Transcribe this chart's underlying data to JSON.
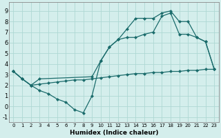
{
  "xlabel": "Humidex (Indice chaleur)",
  "xlim": [
    -0.5,
    23.5
  ],
  "ylim": [
    -1.5,
    9.8
  ],
  "yticks": [
    -1,
    0,
    1,
    2,
    3,
    4,
    5,
    6,
    7,
    8,
    9
  ],
  "xticks": [
    0,
    1,
    2,
    3,
    4,
    5,
    6,
    7,
    8,
    9,
    10,
    11,
    12,
    13,
    14,
    15,
    16,
    17,
    18,
    19,
    20,
    21,
    22,
    23
  ],
  "bg_color": "#d4eeec",
  "grid_color": "#aed8d4",
  "line_color": "#1a6b6b",
  "curve_top_x": [
    0,
    1,
    2,
    3,
    4,
    5,
    6,
    7,
    8,
    9,
    10,
    11,
    12,
    13,
    14,
    15,
    16,
    17,
    18,
    19,
    20,
    21,
    22,
    23
  ],
  "curve_top_y": [
    3.3,
    2.6,
    2.0,
    1.5,
    1.2,
    0.7,
    0.4,
    -0.3,
    -0.6,
    1.0,
    4.3,
    5.6,
    6.3,
    7.3,
    8.3,
    8.3,
    8.3,
    8.8,
    9.0,
    8.0,
    8.0,
    6.5,
    6.1,
    3.5
  ],
  "curve_mid_x": [
    0,
    1,
    2,
    3,
    9,
    10,
    11,
    12,
    13,
    14,
    15,
    16,
    17,
    18,
    19,
    20,
    21,
    22,
    23
  ],
  "curve_mid_y": [
    3.3,
    2.6,
    2.0,
    2.6,
    2.8,
    4.3,
    5.6,
    6.3,
    6.5,
    6.5,
    6.8,
    7.0,
    8.5,
    8.8,
    6.8,
    6.8,
    6.5,
    6.1,
    3.5
  ],
  "curve_bot_x": [
    0,
    1,
    2,
    3,
    4,
    5,
    6,
    7,
    8,
    9,
    10,
    11,
    12,
    13,
    14,
    15,
    16,
    17,
    18,
    19,
    20,
    21,
    22,
    23
  ],
  "curve_bot_y": [
    3.3,
    2.6,
    2.0,
    2.1,
    2.2,
    2.3,
    2.4,
    2.5,
    2.5,
    2.6,
    2.7,
    2.8,
    2.9,
    3.0,
    3.1,
    3.1,
    3.2,
    3.2,
    3.3,
    3.3,
    3.4,
    3.4,
    3.5,
    3.5
  ]
}
